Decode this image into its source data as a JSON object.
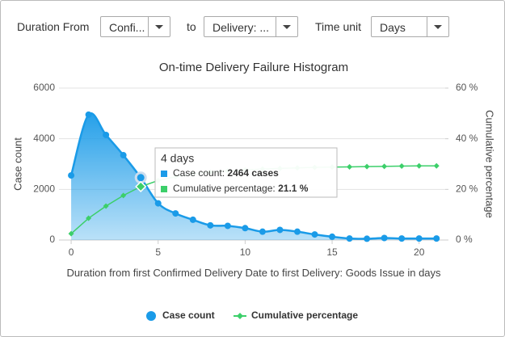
{
  "controls": {
    "from_label": "Duration From",
    "from_value": "Confi...",
    "to_label": "to",
    "to_value": "Delivery: ...",
    "unit_label": "Time unit",
    "unit_value": "Days"
  },
  "tooltip": {
    "title": "4 days",
    "items": [
      {
        "label": "Case count:",
        "text": "2464 cases"
      },
      {
        "label": "Cumulative percentage:",
        "text": "21.1 %"
      }
    ]
  },
  "chart_data": {
    "type": "area-line",
    "title": "On-time Delivery Failure Histogram",
    "x_label": "Duration from first Confirmed Delivery Date to first Delivery: Goods Issue in days",
    "y_label": "Case count",
    "y2_label": "Cumulative percentage",
    "x": [
      0,
      1,
      2,
      3,
      4,
      5,
      6,
      7,
      8,
      9,
      10,
      11,
      12,
      13,
      14,
      15,
      16,
      17,
      18,
      19,
      20,
      21
    ],
    "xlim": [
      -0.7,
      21.5
    ],
    "xticks": [
      0,
      5,
      10,
      15,
      20
    ],
    "ylim": [
      0,
      6000
    ],
    "yticks": [
      0,
      2000,
      4000,
      6000
    ],
    "y2lim": [
      0,
      60
    ],
    "y2ticks": [
      {
        "value": 0,
        "label": "0 %"
      },
      {
        "value": 20,
        "label": "20 %"
      },
      {
        "value": 40,
        "label": "40 %"
      },
      {
        "value": 60,
        "label": "60 %"
      }
    ],
    "grid": true,
    "series": [
      {
        "name": "Case count",
        "color": "#1a9be8",
        "values": [
          2550,
          4950,
          4150,
          3350,
          2464,
          1450,
          1050,
          800,
          580,
          560,
          470,
          330,
          400,
          330,
          220,
          130,
          60,
          50,
          80,
          60,
          60,
          60
        ]
      },
      {
        "name": "Cumulative percentage",
        "color": "#3ccf6a",
        "axis": "y2",
        "values": [
          2.5,
          8.6,
          13.4,
          17.6,
          21.1,
          23.5,
          25,
          26,
          26.8,
          27.3,
          27.7,
          28,
          28.3,
          28.5,
          28.7,
          28.8,
          28.9,
          29,
          29.1,
          29.2,
          29.3,
          29.3
        ]
      }
    ]
  }
}
